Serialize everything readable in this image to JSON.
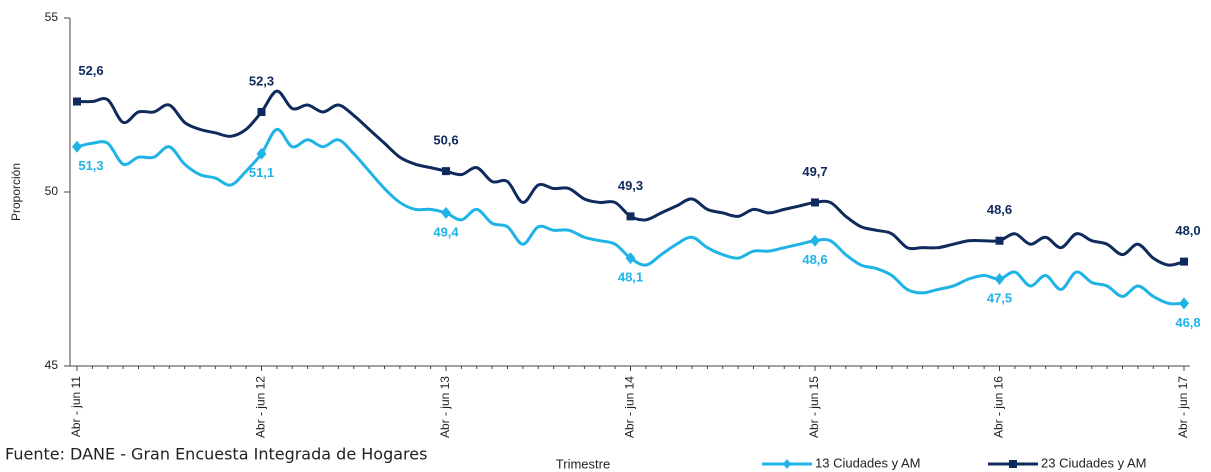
{
  "chart_data": {
    "type": "line",
    "y_label": "Proporción",
    "x_label": "Trimestre",
    "source": "Fuente: DANE - Gran Encuesta Integrada de Hogares",
    "categories": [
      "Abr - jun 11",
      null,
      null,
      null,
      null,
      null,
      null,
      null,
      null,
      null,
      null,
      null,
      "Abr - jun 12",
      null,
      null,
      null,
      null,
      null,
      null,
      null,
      null,
      null,
      null,
      null,
      "Abr - jun 13",
      null,
      null,
      null,
      null,
      null,
      null,
      null,
      null,
      null,
      null,
      null,
      "Abr - jun 14",
      null,
      null,
      null,
      null,
      null,
      null,
      null,
      null,
      null,
      null,
      null,
      "Abr - jun 15",
      null,
      null,
      null,
      null,
      null,
      null,
      null,
      null,
      null,
      null,
      null,
      "Abr - jun 16",
      null,
      null,
      null,
      null,
      null,
      null,
      null,
      null,
      null,
      null,
      null,
      "Abr - jun 17"
    ],
    "ylim": [
      45,
      55
    ],
    "yticks": [
      45,
      50,
      55
    ],
    "series": [
      {
        "name": "13 Ciudades y AM",
        "color": "#1fb3e6",
        "marker": "diamond",
        "label_side": "below",
        "values": [
          51.3,
          51.4,
          51.4,
          50.8,
          51.0,
          51.0,
          51.3,
          50.8,
          50.5,
          50.4,
          50.2,
          50.6,
          51.1,
          51.8,
          51.3,
          51.5,
          51.3,
          51.5,
          51.1,
          50.6,
          50.1,
          49.7,
          49.5,
          49.5,
          49.4,
          49.2,
          49.5,
          49.1,
          49.0,
          48.5,
          49.0,
          48.9,
          48.9,
          48.7,
          48.6,
          48.5,
          48.1,
          47.9,
          48.2,
          48.5,
          48.7,
          48.4,
          48.2,
          48.1,
          48.3,
          48.3,
          48.4,
          48.5,
          48.6,
          48.6,
          48.2,
          47.9,
          47.8,
          47.6,
          47.2,
          47.1,
          47.2,
          47.3,
          47.5,
          47.6,
          47.5,
          47.7,
          47.3,
          47.6,
          47.2,
          47.7,
          47.4,
          47.3,
          47.0,
          47.3,
          47.0,
          46.8,
          46.8
        ],
        "value_labels": [
          "51,3",
          null,
          null,
          null,
          null,
          null,
          null,
          null,
          null,
          null,
          null,
          null,
          "51,1",
          null,
          null,
          null,
          null,
          null,
          null,
          null,
          null,
          null,
          null,
          null,
          "49,4",
          null,
          null,
          null,
          null,
          null,
          null,
          null,
          null,
          null,
          null,
          null,
          "48,1",
          null,
          null,
          null,
          null,
          null,
          null,
          null,
          null,
          null,
          null,
          null,
          "48,6",
          null,
          null,
          null,
          null,
          null,
          null,
          null,
          null,
          null,
          null,
          null,
          "47,5",
          null,
          null,
          null,
          null,
          null,
          null,
          null,
          null,
          null,
          null,
          null,
          "46,8"
        ]
      },
      {
        "name": "23  Ciudades y AM",
        "color": "#0f2a5c",
        "marker": "square",
        "label_side": "above",
        "values": [
          52.6,
          52.6,
          52.65,
          52.0,
          52.3,
          52.3,
          52.5,
          52.0,
          51.8,
          51.7,
          51.6,
          51.8,
          52.3,
          52.9,
          52.4,
          52.5,
          52.3,
          52.5,
          52.2,
          51.8,
          51.4,
          51.0,
          50.8,
          50.7,
          50.6,
          50.5,
          50.7,
          50.3,
          50.3,
          49.7,
          50.2,
          50.1,
          50.1,
          49.8,
          49.7,
          49.7,
          49.3,
          49.2,
          49.4,
          49.6,
          49.8,
          49.5,
          49.4,
          49.3,
          49.5,
          49.4,
          49.5,
          49.6,
          49.7,
          49.7,
          49.3,
          49.0,
          48.9,
          48.8,
          48.4,
          48.4,
          48.4,
          48.5,
          48.6,
          48.6,
          48.6,
          48.8,
          48.5,
          48.7,
          48.4,
          48.8,
          48.6,
          48.5,
          48.2,
          48.5,
          48.1,
          47.9,
          48.0
        ],
        "value_labels": [
          "52,6",
          null,
          null,
          null,
          null,
          null,
          null,
          null,
          null,
          null,
          null,
          null,
          "52,3",
          null,
          null,
          null,
          null,
          null,
          null,
          null,
          null,
          null,
          null,
          null,
          "50,6",
          null,
          null,
          null,
          null,
          null,
          null,
          null,
          null,
          null,
          null,
          null,
          "49,3",
          null,
          null,
          null,
          null,
          null,
          null,
          null,
          null,
          null,
          null,
          null,
          "49,7",
          null,
          null,
          null,
          null,
          null,
          null,
          null,
          null,
          null,
          null,
          null,
          "48,6",
          null,
          null,
          null,
          null,
          null,
          null,
          null,
          null,
          null,
          null,
          null,
          "48,0"
        ]
      }
    ]
  }
}
